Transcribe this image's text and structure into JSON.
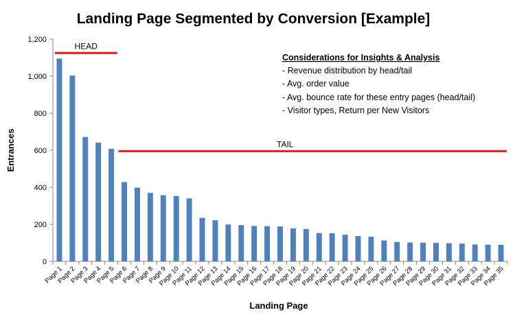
{
  "chart_data": {
    "type": "bar",
    "title": "Landing Page Segmented by Conversion [Example]",
    "xlabel": "Landing Page",
    "ylabel": "Entrances",
    "ylim": [
      0,
      1200
    ],
    "yticks": [
      0,
      200,
      400,
      600,
      800,
      1000,
      1200
    ],
    "ytick_labels": [
      "0",
      "200",
      "400",
      "600",
      "800",
      "1,000",
      "1,200"
    ],
    "categories": [
      "Page 1",
      "Page 2",
      "Page 3",
      "Page 4",
      "Page 5",
      "Page 6",
      "Page 7",
      "Page 8",
      "Page 9",
      "Page 10",
      "Page 11",
      "Page 12",
      "Page 13",
      "Page 14",
      "Page 15",
      "Page 16",
      "Page 17",
      "Page 18",
      "Page 19",
      "Page 20",
      "Page 21",
      "Page 22",
      "Page 23",
      "Page 24",
      "Page 25",
      "Page 26",
      "Page 27",
      "Page 28",
      "Page 29",
      "Page 30",
      "Page 31",
      "Page 32",
      "Page 33",
      "Page 34",
      "Page 35"
    ],
    "values": [
      1095,
      1003,
      672,
      641,
      608,
      428,
      398,
      370,
      357,
      353,
      340,
      235,
      222,
      199,
      196,
      191,
      190,
      188,
      178,
      175,
      153,
      152,
      144,
      137,
      133,
      113,
      105,
      102,
      101,
      100,
      98,
      96,
      91,
      90,
      89
    ],
    "bar_color": "#4f81bd",
    "grid": false,
    "legend": "none",
    "annotations": {
      "head": {
        "label": "HEAD",
        "from_category": "Page 1",
        "to_category": "Page 5",
        "y": 1125,
        "color": "#e41a1c"
      },
      "tail": {
        "label": "TAIL",
        "from_category": "Page 6",
        "to_category": "Page 35",
        "y": 595,
        "color": "#e41a1c"
      }
    },
    "notes": {
      "heading": "Considerations for Insights & Analysis",
      "items": [
        "- Revenue distribution by head/tail",
        "- Avg. order value",
        "- Avg. bounce rate for these entry pages (head/tail)",
        "- Visitor types, Return per New Visitors"
      ]
    }
  }
}
